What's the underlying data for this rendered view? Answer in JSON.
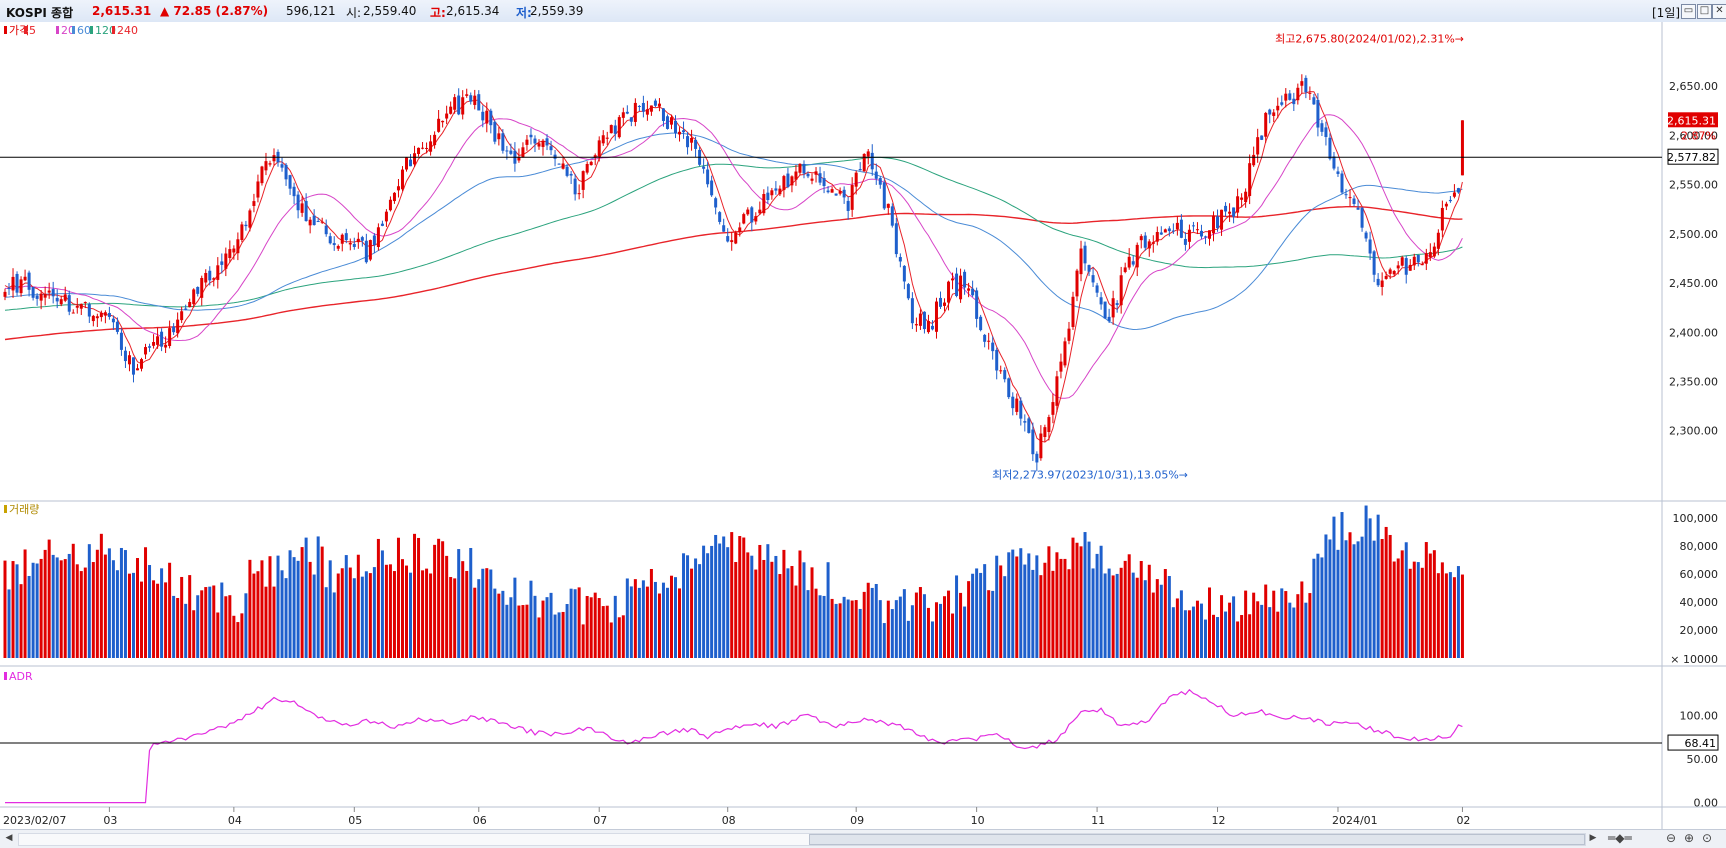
{
  "header": {
    "index_name": "KOSPI 종합",
    "price": "2,615.31",
    "change": "▲ 72.85 (2.87%)",
    "volume": "596,121",
    "open_label": "시:",
    "open": "2,559.40",
    "high_label": "고:",
    "high": "2,615.34",
    "low_label": "저:",
    "low": "2,559.39",
    "period": "[1일]"
  },
  "colors": {
    "up": "#e00000",
    "down": "#1e5fcc",
    "ma5": "#e8242a",
    "ma20": "#d745c8",
    "ma60": "#4a8bd6",
    "ma120": "#2ba37d",
    "ma240": "#e8242a",
    "adr": "#e22de0",
    "hline": "#000000"
  },
  "chart_data": [
    {
      "type": "candlestick",
      "panel": "price",
      "legend": [
        "가격",
        "5",
        "20",
        "60",
        "120",
        "240"
      ],
      "x_ticks": [
        "2023/02/07",
        "03",
        "04",
        "05",
        "06",
        "07",
        "08",
        "09",
        "10",
        "11",
        "12",
        "2024/01",
        "02"
      ],
      "ylim": [
        2255,
        2705
      ],
      "y_ticks": [
        2300,
        2350,
        2400,
        2450,
        2500,
        2550,
        2600,
        2650
      ],
      "y_tick_labels": [
        "2,300.00",
        "2,350.00",
        "2,400.00",
        "2,450.00",
        "2,500.00",
        "2,550.00",
        "2,600.00",
        "2,650.00"
      ],
      "close_anchors": [
        [
          0,
          2452
        ],
        [
          10,
          2440
        ],
        [
          20,
          2425
        ],
        [
          25,
          2415
        ],
        [
          28,
          2395
        ],
        [
          32,
          2360
        ],
        [
          36,
          2380
        ],
        [
          42,
          2400
        ],
        [
          48,
          2440
        ],
        [
          55,
          2480
        ],
        [
          62,
          2530
        ],
        [
          65,
          2575
        ],
        [
          68,
          2572
        ],
        [
          73,
          2530
        ],
        [
          78,
          2505
        ],
        [
          85,
          2490
        ],
        [
          90,
          2480
        ],
        [
          95,
          2520
        ],
        [
          100,
          2570
        ],
        [
          105,
          2595
        ],
        [
          110,
          2620
        ],
        [
          115,
          2640
        ],
        [
          120,
          2618
        ],
        [
          124,
          2590
        ],
        [
          128,
          2575
        ],
        [
          133,
          2600
        ],
        [
          138,
          2575
        ],
        [
          143,
          2545
        ],
        [
          148,
          2600
        ],
        [
          153,
          2612
        ],
        [
          157,
          2625
        ],
        [
          161,
          2635
        ],
        [
          165,
          2615
        ],
        [
          170,
          2595
        ],
        [
          175,
          2555
        ],
        [
          180,
          2500
        ],
        [
          185,
          2515
        ],
        [
          190,
          2540
        ],
        [
          195,
          2555
        ],
        [
          200,
          2565
        ],
        [
          205,
          2540
        ],
        [
          210,
          2530
        ],
        [
          215,
          2585
        ],
        [
          220,
          2520
        ],
        [
          223,
          2470
        ],
        [
          226,
          2420
        ],
        [
          230,
          2405
        ],
        [
          234,
          2440
        ],
        [
          238,
          2450
        ],
        [
          242,
          2420
        ],
        [
          246,
          2370
        ],
        [
          250,
          2345
        ],
        [
          254,
          2300
        ],
        [
          257,
          2276
        ],
        [
          261,
          2330
        ],
        [
          265,
          2400
        ],
        [
          268,
          2480
        ],
        [
          272,
          2440
        ],
        [
          275,
          2410
        ],
        [
          279,
          2465
        ],
        [
          283,
          2490
        ],
        [
          287,
          2500
        ],
        [
          291,
          2505
        ],
        [
          295,
          2495
        ],
        [
          299,
          2505
        ],
        [
          303,
          2520
        ],
        [
          307,
          2530
        ],
        [
          311,
          2575
        ],
        [
          315,
          2625
        ],
        [
          320,
          2640
        ],
        [
          324,
          2650
        ],
        [
          328,
          2600
        ],
        [
          332,
          2560
        ],
        [
          336,
          2530
        ],
        [
          340,
          2490
        ],
        [
          342,
          2445
        ],
        [
          346,
          2470
        ],
        [
          350,
          2465
        ],
        [
          354,
          2472
        ],
        [
          357,
          2510
        ],
        [
          361,
          2542
        ]
      ],
      "last_candle": {
        "open": 2559.4,
        "high": 2615.34,
        "low": 2559.39,
        "close": 2615.31
      },
      "moving_averages": [
        "5",
        "20",
        "60",
        "120",
        "240"
      ],
      "horizontal_line": 2577.82,
      "horizontal_line_label": "2,577.82",
      "last_price_label": "2,615.31",
      "last_change_label": "2.87%",
      "annotations": [
        {
          "text": "최고2,675.80(2024/01/02),2.31%→",
          "value": 2675.8
        },
        {
          "text": "최저2,273.97(2023/10/31),13.05%→",
          "value": 2273.97
        }
      ]
    },
    {
      "type": "bar",
      "panel": "volume",
      "legend": [
        "거래량"
      ],
      "unit_label": "× 10000",
      "ylim": [
        0,
        120000
      ],
      "y_ticks": [
        20000,
        40000,
        60000,
        80000,
        100000
      ],
      "y_tick_labels": [
        "20,000",
        "40,000",
        "60,000",
        "80,000",
        "100,000"
      ],
      "last_value": 59612
    },
    {
      "type": "line",
      "panel": "adr",
      "legend": [
        "ADR"
      ],
      "ylim": [
        -5,
        150
      ],
      "y_ticks": [
        0,
        50,
        100
      ],
      "y_tick_labels": [
        "0.00",
        "50.00",
        "100.00"
      ],
      "horizontal_line": 68.41,
      "horizontal_line_label": "68.41",
      "adr_anchors": [
        [
          0,
          0
        ],
        [
          35,
          0
        ],
        [
          36,
          60
        ],
        [
          37,
          68
        ],
        [
          45,
          72
        ],
        [
          55,
          88
        ],
        [
          60,
          100
        ],
        [
          67,
          118
        ],
        [
          72,
          115
        ],
        [
          78,
          98
        ],
        [
          85,
          90
        ],
        [
          92,
          95
        ],
        [
          97,
          86
        ],
        [
          103,
          96
        ],
        [
          110,
          92
        ],
        [
          117,
          98
        ],
        [
          125,
          90
        ],
        [
          132,
          80
        ],
        [
          138,
          78
        ],
        [
          145,
          86
        ],
        [
          150,
          76
        ],
        [
          155,
          68
        ],
        [
          162,
          78
        ],
        [
          170,
          84
        ],
        [
          175,
          76
        ],
        [
          180,
          84
        ],
        [
          185,
          90
        ],
        [
          192,
          88
        ],
        [
          200,
          100
        ],
        [
          207,
          88
        ],
        [
          215,
          97
        ],
        [
          220,
          90
        ],
        [
          225,
          85
        ],
        [
          232,
          68
        ],
        [
          240,
          72
        ],
        [
          247,
          78
        ],
        [
          254,
          60
        ],
        [
          262,
          72
        ],
        [
          268,
          102
        ],
        [
          273,
          108
        ],
        [
          278,
          88
        ],
        [
          285,
          95
        ],
        [
          290,
          122
        ],
        [
          296,
          128
        ],
        [
          300,
          118
        ],
        [
          306,
          100
        ],
        [
          312,
          105
        ],
        [
          318,
          98
        ],
        [
          323,
          98
        ],
        [
          330,
          90
        ],
        [
          335,
          92
        ],
        [
          340,
          85
        ],
        [
          347,
          76
        ],
        [
          355,
          72
        ],
        [
          360,
          78
        ],
        [
          362,
          88
        ]
      ]
    }
  ]
}
